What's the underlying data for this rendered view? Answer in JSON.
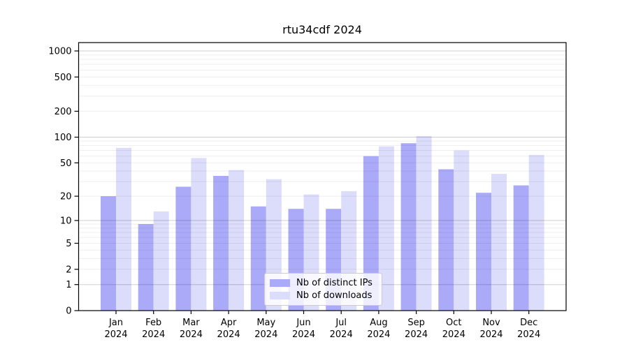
{
  "chart_data": {
    "type": "bar",
    "title": "rtu34cdf 2024",
    "months": [
      "Jan",
      "Feb",
      "Mar",
      "Apr",
      "May",
      "Jun",
      "Jul",
      "Aug",
      "Sep",
      "Oct",
      "Nov",
      "Dec"
    ],
    "year": "2024",
    "series": [
      {
        "name": "Nb of distinct IPs",
        "color": "#aaaaf9",
        "values": [
          20,
          9,
          26,
          35,
          15,
          14,
          14,
          60,
          85,
          42,
          22,
          27
        ]
      },
      {
        "name": "Nb of downloads",
        "color": "#dcdcfb",
        "values": [
          75,
          13,
          57,
          41,
          32,
          21,
          23,
          78,
          103,
          70,
          37,
          62
        ]
      }
    ],
    "xlabel": "",
    "ylabel": "",
    "yscale": "log1p",
    "yticks": [
      0,
      1,
      2,
      5,
      10,
      20,
      50,
      100,
      200,
      500,
      1000
    ],
    "major_gridlines": [
      1,
      10,
      100,
      1000
    ],
    "minor_gridlines": [
      2,
      3,
      4,
      5,
      6,
      7,
      8,
      9,
      20,
      30,
      40,
      50,
      60,
      70,
      80,
      90,
      200,
      300,
      400,
      500,
      600,
      700,
      800,
      900
    ],
    "ylim": [
      0,
      1250
    ],
    "grid": true,
    "legend_position": "lower center inside plot",
    "colors": {
      "spine": "#000000",
      "grid_major": "rgba(0,0,0,0.19)",
      "grid_minor": "rgba(0,0,0,0.065)",
      "background": "#ffffff",
      "legend_border": "#cccccc"
    }
  }
}
